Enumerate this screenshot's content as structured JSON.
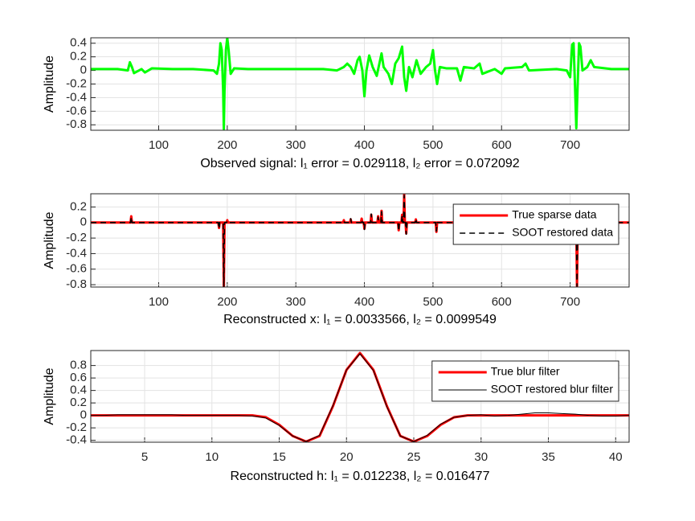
{
  "chart_data": [
    {
      "type": "line",
      "xlabel": "Observed signal: l₁ error = 0.029118, l₂ error = 0.072092",
      "ylabel": "Amplitude",
      "x": [
        1,
        40,
        55,
        58,
        61,
        64,
        75,
        80,
        90,
        120,
        150,
        180,
        185,
        188,
        190,
        192,
        194,
        195,
        196,
        198,
        200,
        202,
        205,
        210,
        230,
        260,
        300,
        340,
        360,
        370,
        375,
        380,
        385,
        390,
        393,
        397,
        400,
        403,
        407,
        412,
        418,
        425,
        428,
        435,
        440,
        445,
        450,
        455,
        458,
        461,
        465,
        470,
        476,
        482,
        490,
        496,
        500,
        503,
        506,
        510,
        520,
        535,
        540,
        545,
        560,
        568,
        572,
        590,
        600,
        605,
        630,
        635,
        640,
        680,
        695,
        700,
        703,
        705,
        707,
        709,
        711,
        713,
        715,
        718,
        725,
        730,
        735,
        760,
        786
      ],
      "series": [
        {
          "color": "#00ff00",
          "values": [
            0.02,
            0.02,
            0.0,
            0.12,
            0.05,
            -0.04,
            0.02,
            -0.03,
            0.03,
            0.02,
            0.02,
            0.0,
            -0.05,
            0.1,
            0.4,
            0.3,
            -0.3,
            -0.86,
            -0.3,
            0.3,
            0.48,
            0.3,
            -0.05,
            0.03,
            0.02,
            0.02,
            0.02,
            0.02,
            0.0,
            0.05,
            0.1,
            0.05,
            -0.05,
            0.15,
            0.2,
            0.0,
            -0.38,
            0.0,
            0.22,
            0.05,
            -0.08,
            0.25,
            0.05,
            -0.05,
            -0.2,
            0.1,
            0.18,
            0.35,
            -0.1,
            -0.3,
            0.05,
            -0.1,
            0.15,
            -0.05,
            0.05,
            0.1,
            0.3,
            0.0,
            -0.2,
            0.05,
            0.03,
            0.03,
            -0.15,
            0.05,
            0.03,
            0.1,
            -0.05,
            0.02,
            -0.05,
            0.03,
            0.05,
            0.1,
            0.0,
            0.02,
            0.0,
            -0.1,
            0.38,
            0.4,
            -0.2,
            -0.85,
            -0.2,
            0.4,
            0.35,
            0.0,
            0.05,
            0.15,
            0.05,
            0.02,
            0.02
          ]
        }
      ],
      "xlim": [
        1,
        786
      ],
      "ylim": [
        -0.88,
        0.48
      ],
      "xticks": [
        100,
        200,
        300,
        400,
        500,
        600,
        700
      ],
      "yticks": [
        0.4,
        0.2,
        0,
        -0.2,
        -0.4,
        -0.6,
        -0.8
      ],
      "grid": true
    },
    {
      "type": "line",
      "xlabel": "Reconstructed x: l₁ = 0.0033566, l₂ = 0.0099549",
      "ylabel": "Amplitude",
      "x": [
        1,
        59,
        60,
        61,
        187,
        188,
        189,
        194,
        195,
        196,
        199,
        200,
        201,
        369,
        370,
        371,
        379,
        380,
        381,
        395,
        396,
        397,
        399,
        400,
        401,
        409,
        410,
        411,
        419,
        420,
        421,
        424,
        425,
        426,
        449,
        450,
        451,
        454,
        455,
        456,
        457,
        458,
        459,
        460,
        461,
        462,
        474,
        475,
        476,
        504,
        505,
        506,
        704,
        705,
        706,
        709,
        710,
        711,
        786
      ],
      "series": [
        {
          "name": "True sparse data",
          "color": "#ff0000",
          "values": [
            0,
            0,
            0.08,
            0,
            0,
            -0.07,
            0,
            0,
            -0.85,
            0,
            0,
            0.03,
            0,
            0,
            0.03,
            0,
            0,
            0.04,
            0,
            0,
            0.05,
            0,
            0,
            -0.08,
            0,
            0,
            0.1,
            0,
            0,
            0.08,
            0,
            0,
            0.15,
            0,
            0,
            -0.1,
            0,
            0,
            0.1,
            0,
            0,
            0.36,
            0,
            0,
            -0.14,
            0,
            0,
            0.04,
            0,
            0,
            -0.12,
            0,
            0,
            0.03,
            0,
            0,
            -0.84,
            0,
            0
          ]
        },
        {
          "name": "SOOT restored data",
          "color": "#000000",
          "dashed": true,
          "values": [
            0,
            0,
            0.07,
            0,
            0,
            -0.08,
            0,
            0,
            -0.83,
            0,
            0,
            0.02,
            0,
            0,
            0.02,
            0,
            0,
            0.05,
            0,
            0,
            0.04,
            0,
            0,
            -0.09,
            0,
            0,
            0.11,
            0,
            0,
            0.07,
            0,
            0,
            0.14,
            0,
            0,
            -0.11,
            0,
            0,
            0.09,
            0,
            0,
            0.35,
            0,
            0,
            -0.15,
            0,
            0,
            0.05,
            0,
            0,
            -0.11,
            0,
            0,
            0.02,
            0,
            0,
            -0.82,
            0,
            0
          ]
        }
      ],
      "xlim": [
        1,
        786
      ],
      "ylim": [
        -0.83,
        0.37
      ],
      "xticks": [
        100,
        200,
        300,
        400,
        500,
        600,
        700
      ],
      "yticks": [
        0.2,
        0,
        -0.2,
        -0.4,
        -0.6,
        -0.8
      ],
      "grid": true,
      "legend": "northeast"
    },
    {
      "type": "line",
      "xlabel": "Reconstructed h: l₁ = 0.012238, l₂ = 0.016477",
      "ylabel": "Amplitude",
      "x": [
        1,
        2,
        3,
        4,
        5,
        6,
        7,
        8,
        9,
        10,
        11,
        12,
        13,
        14,
        15,
        16,
        17,
        18,
        19,
        20,
        21,
        22,
        23,
        24,
        25,
        26,
        27,
        28,
        29,
        30,
        31,
        32,
        33,
        34,
        35,
        36,
        37,
        38,
        39,
        40,
        41
      ],
      "series": [
        {
          "name": "True blur filter",
          "color": "#ff0000",
          "values": [
            0,
            0,
            0,
            0,
            0,
            0,
            0,
            0,
            0,
            0,
            0,
            0,
            0,
            -0.03,
            -0.15,
            -0.33,
            -0.42,
            -0.33,
            0.15,
            0.73,
            1.0,
            0.73,
            0.15,
            -0.33,
            -0.42,
            -0.33,
            -0.15,
            -0.03,
            0,
            0,
            0,
            0,
            0,
            0,
            0,
            0,
            0,
            0,
            0,
            0,
            0
          ]
        },
        {
          "name": "SOOT restored blur filter",
          "color": "#000000",
          "values": [
            0,
            0,
            0.01,
            0.01,
            0.01,
            0.01,
            0.01,
            0,
            0,
            0,
            0,
            0,
            -0.01,
            -0.04,
            -0.16,
            -0.33,
            -0.42,
            -0.32,
            0.16,
            0.73,
            0.99,
            0.72,
            0.14,
            -0.33,
            -0.42,
            -0.32,
            -0.14,
            -0.03,
            0,
            0.01,
            -0.01,
            0,
            0.02,
            0.04,
            0.04,
            0.03,
            0.02,
            0,
            -0.01,
            -0.01,
            0
          ]
        }
      ],
      "xlim": [
        1,
        41
      ],
      "ylim": [
        -0.43,
        1.04
      ],
      "xticks": [
        5,
        10,
        15,
        20,
        25,
        30,
        35,
        40
      ],
      "yticks": [
        0.8,
        0.6,
        0.4,
        0.2,
        0,
        -0.2,
        -0.4
      ],
      "grid": true,
      "legend": "northeast"
    }
  ]
}
